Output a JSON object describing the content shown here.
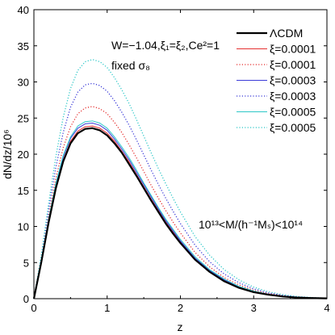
{
  "chart_data": {
    "type": "line",
    "xlabel": "z",
    "ylabel": "dN/dz/10⁶",
    "xlim": [
      0,
      4
    ],
    "ylim": [
      0,
      40
    ],
    "xticks": [
      "0",
      "1",
      "2",
      "3",
      "4"
    ],
    "yticks": [
      "0",
      "5",
      "10",
      "15",
      "20",
      "25",
      "30",
      "35",
      "40"
    ],
    "grid": false,
    "legend_position": "top-right",
    "annotations": {
      "params": "W=−1.04,ξ₁=ξ₂,Ce²=1",
      "fixed": "fixed σ₈",
      "mass_range": "10¹³<M/(h⁻¹Mₛ)<10¹⁴"
    },
    "x": [
      0,
      0.1,
      0.2,
      0.3,
      0.4,
      0.5,
      0.6,
      0.7,
      0.8,
      0.9,
      1.0,
      1.1,
      1.2,
      1.3,
      1.4,
      1.5,
      1.6,
      1.7,
      1.8,
      1.9,
      2.0,
      2.2,
      2.4,
      2.6,
      2.8,
      3.0,
      3.2,
      3.4,
      3.6,
      3.8,
      4.0
    ],
    "series": [
      {
        "name": "ΛCDM",
        "color": "#000000",
        "dash": "solid",
        "width": 2.2,
        "values": [
          0,
          5.0,
          10.5,
          15.3,
          19.0,
          21.5,
          22.9,
          23.5,
          23.6,
          23.3,
          22.6,
          21.5,
          20.2,
          18.6,
          17.0,
          15.3,
          13.6,
          12.0,
          10.4,
          9.0,
          7.7,
          5.4,
          3.7,
          2.4,
          1.5,
          0.9,
          0.55,
          0.3,
          0.15,
          0.08,
          0.04
        ]
      },
      {
        "name": "ξ=0.0001",
        "color": "#e53030",
        "dash": "solid",
        "width": 1,
        "values": [
          0,
          5.1,
          10.7,
          15.5,
          19.2,
          21.8,
          23.2,
          23.8,
          23.9,
          23.6,
          22.9,
          21.8,
          20.4,
          18.9,
          17.2,
          15.5,
          13.8,
          12.2,
          10.6,
          9.2,
          7.9,
          5.5,
          3.8,
          2.5,
          1.6,
          0.95,
          0.58,
          0.32,
          0.16,
          0.09,
          0.04
        ]
      },
      {
        "name": "ξ=0.0001",
        "color": "#e53030",
        "dash": "dotted",
        "width": 1.3,
        "values": [
          0,
          5.4,
          11.4,
          16.7,
          20.9,
          23.8,
          25.6,
          26.4,
          26.6,
          26.3,
          25.6,
          24.4,
          23.0,
          21.3,
          19.5,
          17.6,
          15.7,
          13.9,
          12.2,
          10.6,
          9.1,
          6.4,
          4.4,
          2.9,
          1.9,
          1.15,
          0.7,
          0.4,
          0.2,
          0.1,
          0.05
        ]
      },
      {
        "name": "ξ=0.0003",
        "color": "#3a3ad8",
        "dash": "solid",
        "width": 1,
        "values": [
          0,
          5.2,
          10.9,
          15.8,
          19.6,
          22.2,
          23.6,
          24.2,
          24.3,
          24.0,
          23.3,
          22.1,
          20.7,
          19.2,
          17.5,
          15.8,
          14.1,
          12.4,
          10.8,
          9.4,
          8.0,
          5.6,
          3.9,
          2.6,
          1.65,
          1.0,
          0.6,
          0.34,
          0.17,
          0.09,
          0.04
        ]
      },
      {
        "name": "ξ=0.0003",
        "color": "#3a3ad8",
        "dash": "dotted",
        "width": 1.3,
        "values": [
          0,
          5.7,
          12.3,
          18.2,
          23.0,
          26.5,
          28.6,
          29.6,
          29.8,
          29.5,
          28.7,
          27.4,
          25.8,
          24.0,
          22.0,
          19.9,
          17.8,
          15.8,
          13.9,
          12.1,
          10.4,
          7.4,
          5.1,
          3.4,
          2.2,
          1.35,
          0.8,
          0.45,
          0.24,
          0.12,
          0.06
        ]
      },
      {
        "name": "ξ=0.0005",
        "color": "#2ec8c8",
        "dash": "solid",
        "width": 1,
        "values": [
          0,
          5.2,
          11.0,
          16.0,
          19.8,
          22.4,
          23.9,
          24.5,
          24.6,
          24.3,
          23.6,
          22.4,
          21.0,
          19.5,
          17.8,
          16.0,
          14.3,
          12.6,
          11.0,
          9.6,
          8.2,
          5.8,
          4.0,
          2.7,
          1.7,
          1.05,
          0.62,
          0.35,
          0.18,
          0.1,
          0.05
        ]
      },
      {
        "name": "ξ=0.0005",
        "color": "#2ec8c8",
        "dash": "dotted",
        "width": 1.3,
        "values": [
          0,
          6.0,
          13.1,
          19.7,
          25.1,
          29.1,
          31.6,
          32.8,
          33.1,
          32.8,
          32.0,
          30.6,
          28.9,
          27.0,
          24.8,
          22.5,
          20.2,
          18.0,
          15.9,
          13.9,
          12.0,
          8.6,
          6.0,
          4.0,
          2.6,
          1.6,
          0.95,
          0.55,
          0.29,
          0.15,
          0.07
        ]
      }
    ]
  }
}
